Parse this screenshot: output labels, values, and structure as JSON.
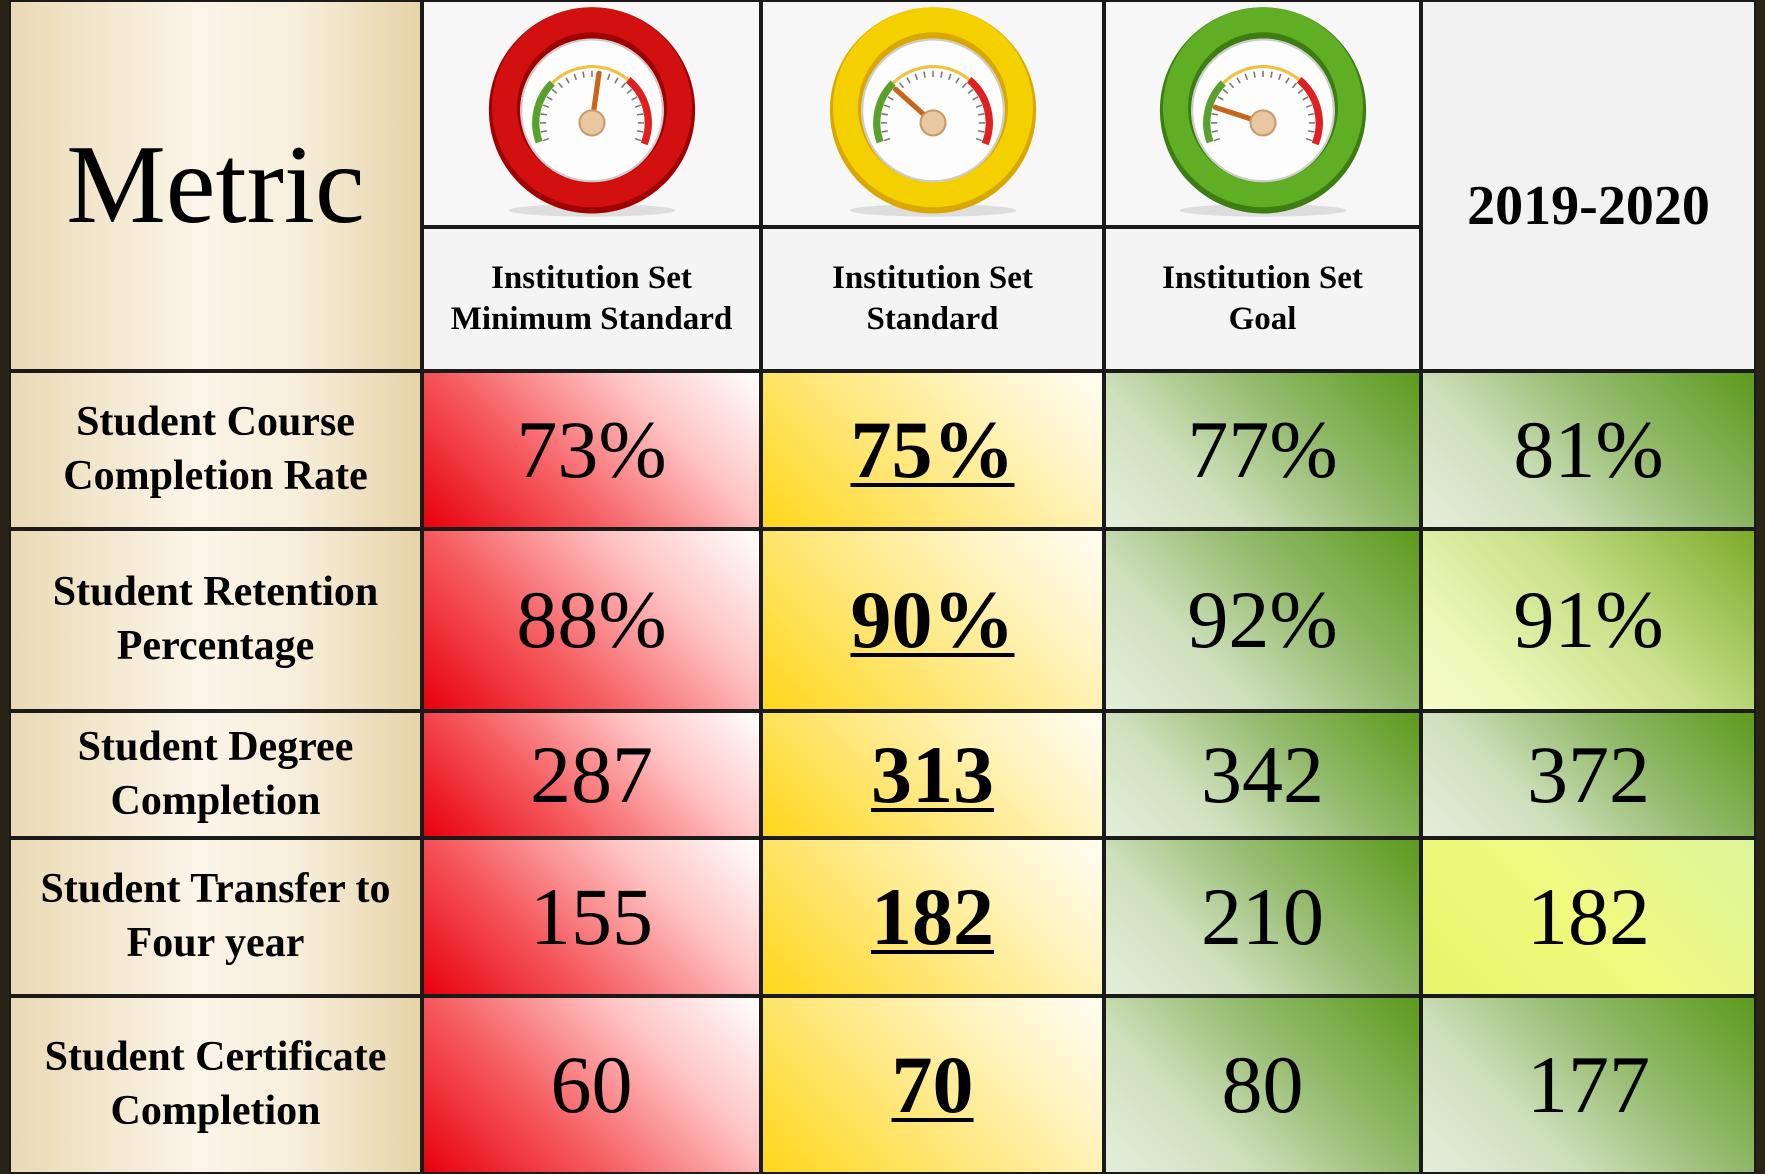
{
  "header": {
    "metric": "Metric",
    "columns": [
      "Institution Set Minimum Standard",
      "Institution Set Standard",
      "Institution Set Goal"
    ],
    "year": "2019-2020"
  },
  "table": {
    "rows": [
      [
        "Student Course Completion Rate",
        "73%",
        "75%",
        "77%",
        "81%"
      ],
      [
        "Student Retention Percentage",
        "88%",
        "90%",
        "92%",
        "91%"
      ],
      [
        "Student Degree Completion",
        "287",
        "313",
        "342",
        "372"
      ],
      [
        "Student Transfer to Four year",
        "155",
        "182",
        "210",
        "182"
      ],
      [
        "Student Certificate Completion",
        "60",
        "70",
        "80",
        "177"
      ]
    ]
  }
}
